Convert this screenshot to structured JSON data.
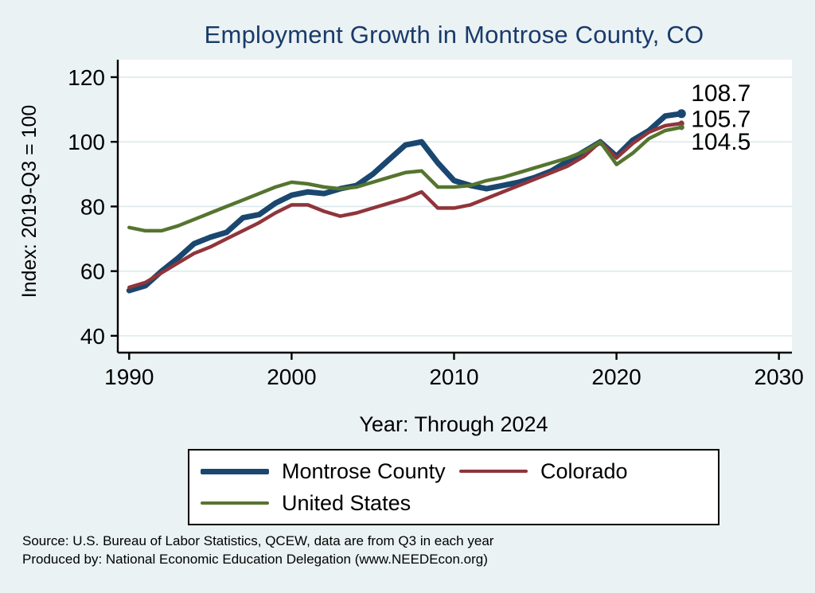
{
  "colors": {
    "background": "#eaf2f3",
    "title": "#1a3a6b",
    "grid": "#dce9eb",
    "plot_background": "#ffffff",
    "axis": "#000000"
  },
  "notes": [
    "Source: U.S. Bureau of Labor Statistics, QCEW, data are from Q3 in each year",
    "Produced by: National Economic Education Delegation (www.NEEDEcon.org)"
  ],
  "chart_data": {
    "type": "line",
    "title": "Employment Growth in Montrose County, CO",
    "ylabel": "Index: 2019-Q3 = 100",
    "xlabel": "Year: Through 2024",
    "xlim": [
      1989.3,
      2030.8
    ],
    "ylim": [
      34.8,
      125.4
    ],
    "xticks": [
      1990,
      2000,
      2010,
      2020,
      2030
    ],
    "yticks": [
      40,
      60,
      80,
      100,
      120
    ],
    "grid": "horizontal",
    "legend_position": "bottom",
    "years": [
      1990,
      1991,
      1992,
      1993,
      1994,
      1995,
      1996,
      1997,
      1998,
      1999,
      2000,
      2001,
      2002,
      2003,
      2004,
      2005,
      2006,
      2007,
      2008,
      2009,
      2010,
      2011,
      2012,
      2013,
      2014,
      2015,
      2016,
      2017,
      2018,
      2019,
      2020,
      2021,
      2022,
      2023,
      2024
    ],
    "series": [
      {
        "name": "Montrose County",
        "color": "#1a476f",
        "width": 7,
        "values": [
          54,
          55.5,
          60,
          64,
          68.5,
          70.5,
          72,
          76.5,
          77.5,
          81,
          83.5,
          84.5,
          84,
          85.5,
          86.5,
          90,
          94.5,
          99,
          100,
          93.5,
          88,
          86.5,
          85.5,
          86.5,
          87.5,
          89,
          91,
          94,
          97,
          100,
          95.5,
          100.5,
          103.5,
          108,
          108.7
        ]
      },
      {
        "name": "Colorado",
        "color": "#90353b",
        "width": 4.5,
        "values": [
          55,
          56.5,
          59.5,
          62.5,
          65.5,
          67.5,
          70,
          72.5,
          75,
          78,
          80.5,
          80.5,
          78.5,
          77,
          78,
          79.5,
          81,
          82.5,
          84.5,
          79.5,
          79.5,
          80.5,
          82.5,
          84.5,
          86.5,
          88.5,
          90.5,
          92.5,
          95.5,
          100,
          95,
          99.5,
          103,
          105,
          105.7
        ]
      },
      {
        "name": "United States",
        "color": "#55752f",
        "width": 4.5,
        "values": [
          73.5,
          72.5,
          72.5,
          74,
          76,
          78,
          80,
          82,
          84,
          86,
          87.5,
          87,
          86,
          85.5,
          86,
          87.5,
          89,
          90.5,
          91,
          86,
          86,
          86.5,
          88,
          89,
          90.5,
          92,
          93.5,
          95,
          97,
          100,
          93,
          96.5,
          101,
          103.5,
          104.5
        ]
      }
    ],
    "end_labels": [
      {
        "text": "108.7",
        "at": 115
      },
      {
        "text": "105.7",
        "at": 107
      },
      {
        "text": "104.5",
        "at": 100
      }
    ]
  }
}
